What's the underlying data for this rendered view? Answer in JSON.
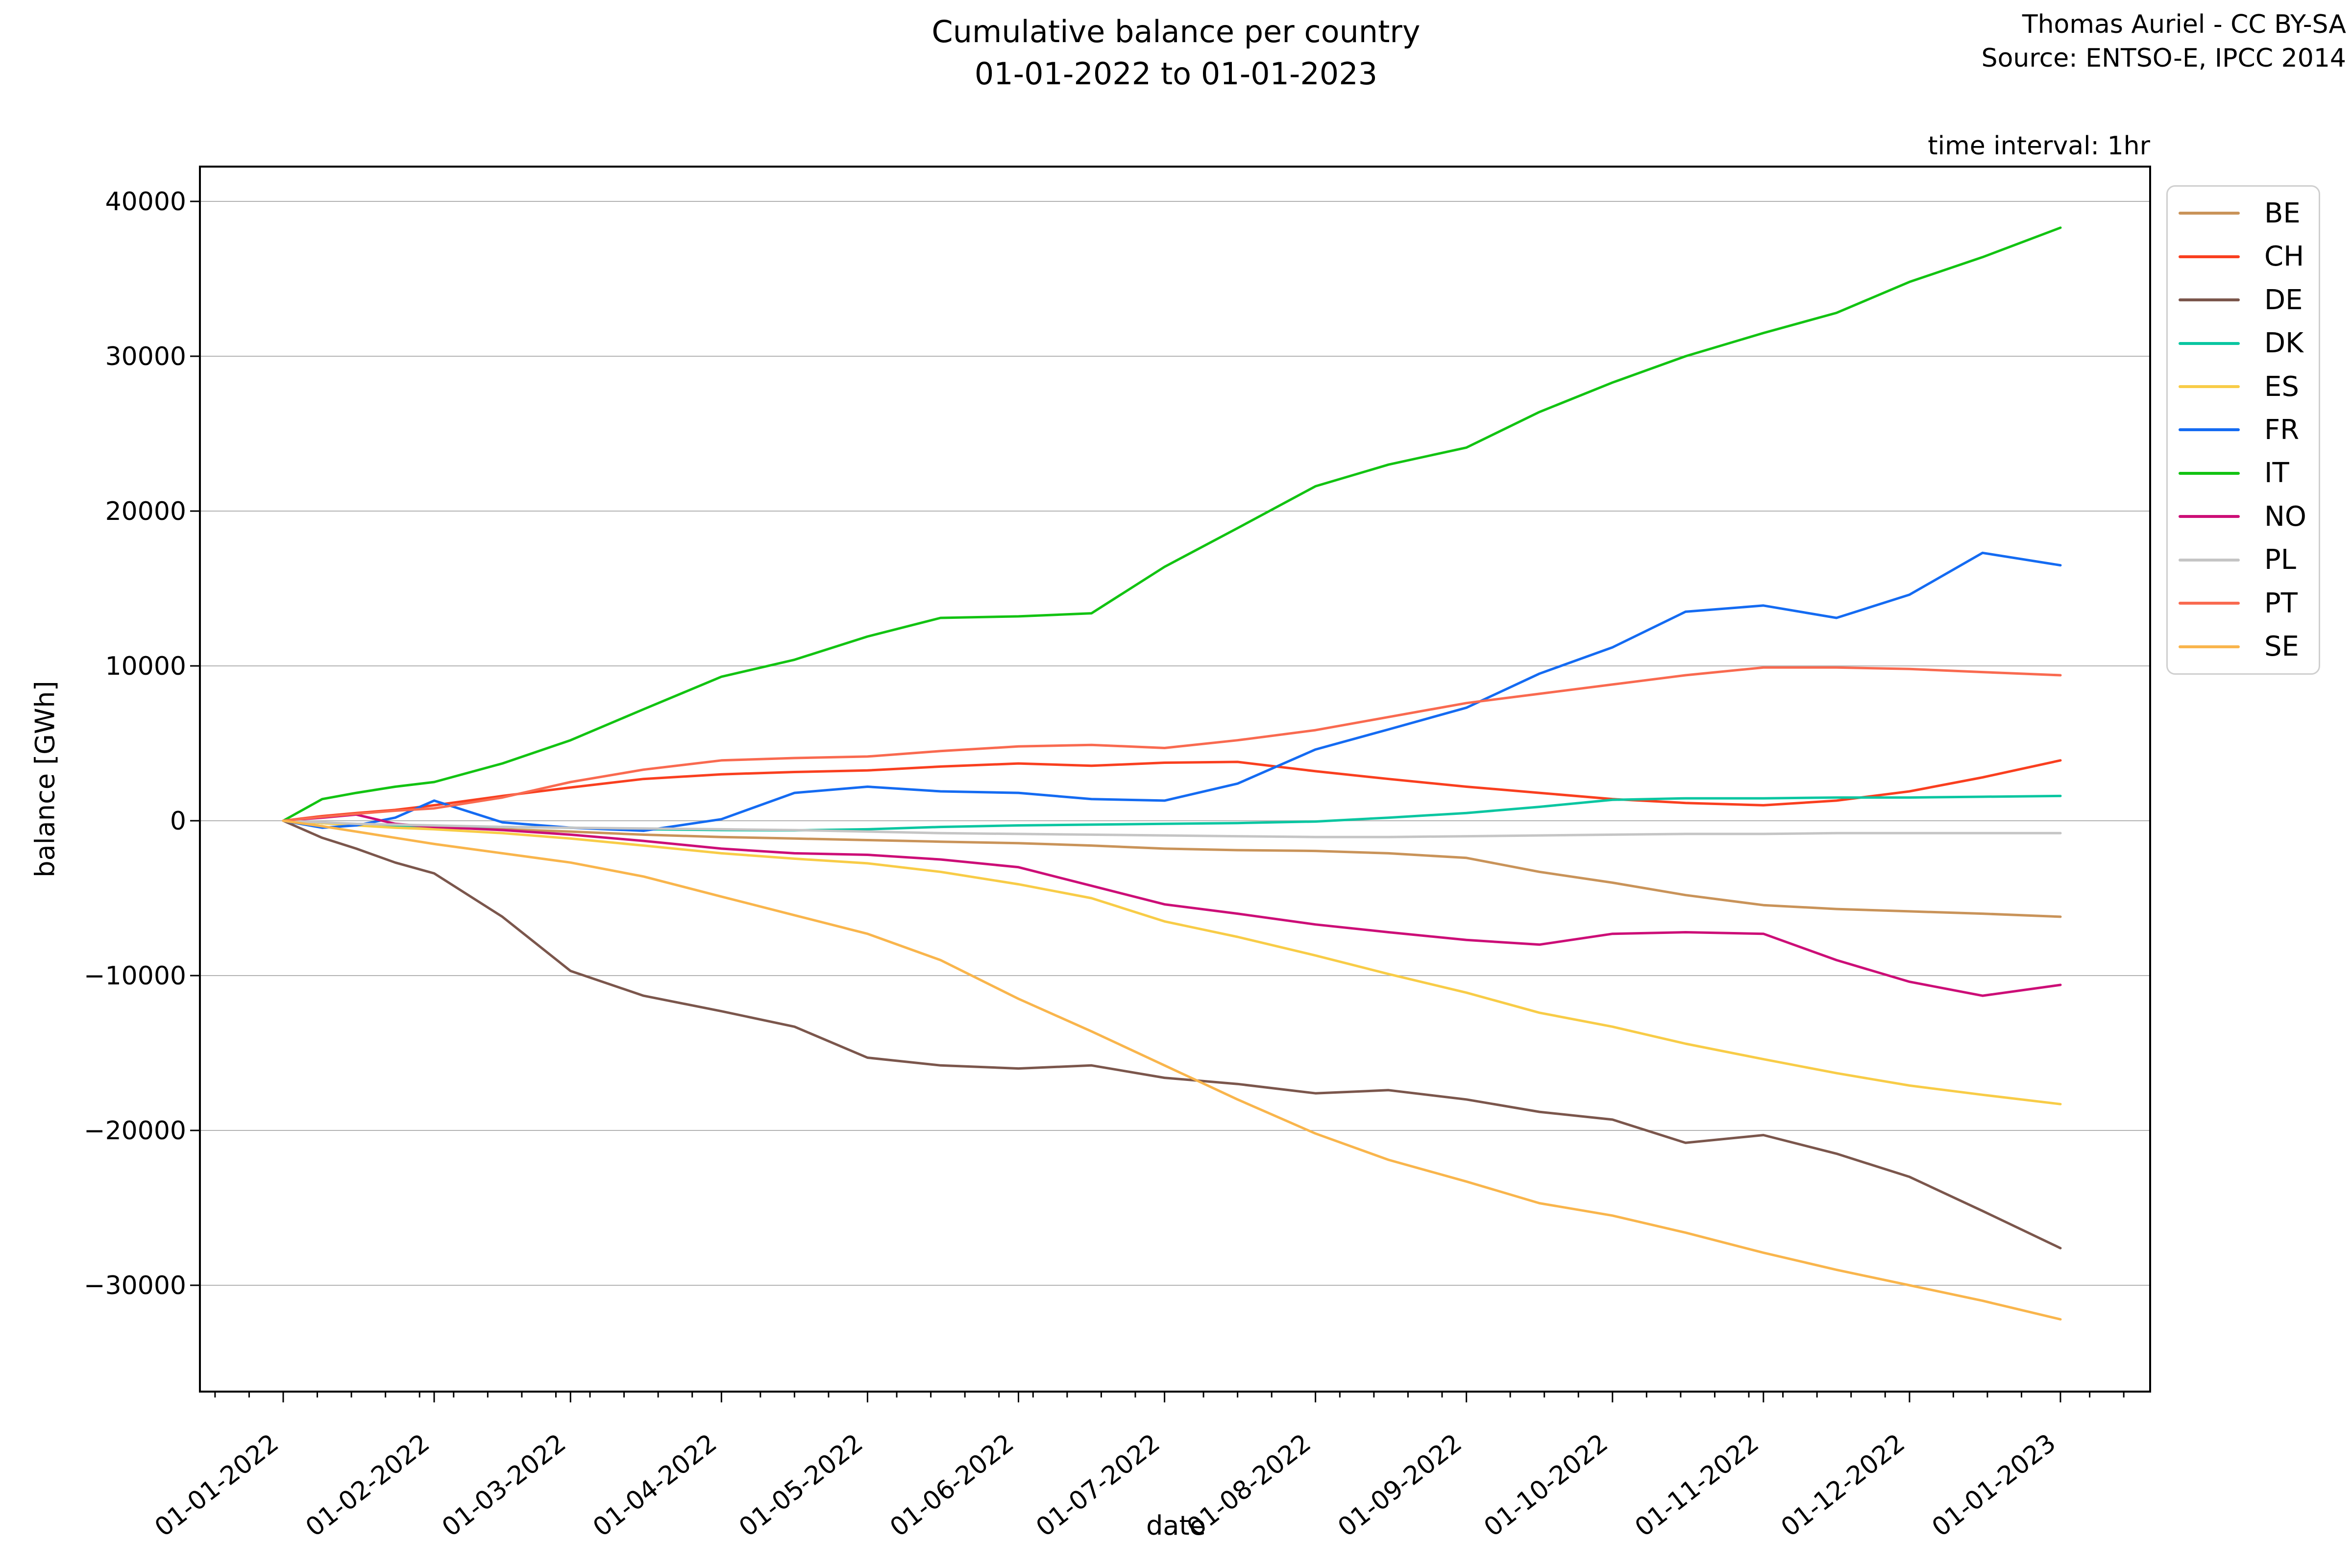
{
  "header": {
    "title_line1": "Cumulative balance per country",
    "title_line2": "01-01-2022 to 01-01-2023",
    "attribution_line1": "Thomas Auriel - CC BY-SA",
    "attribution_line2": "Source: ENTSO-E, IPCC 2014",
    "interval_label": "time interval: 1hr"
  },
  "axes": {
    "xlabel": "date",
    "ylabel": "balance [GWh]",
    "x_tick_labels": [
      "01-01-2022",
      "01-02-2022",
      "01-03-2022",
      "01-04-2022",
      "01-05-2022",
      "01-06-2022",
      "01-07-2022",
      "01-08-2022",
      "01-09-2022",
      "01-10-2022",
      "01-11-2022",
      "01-12-2022",
      "01-01-2023"
    ],
    "y_tick_labels": [
      "40000",
      "30000",
      "20000",
      "10000",
      "0",
      "−10000",
      "−20000",
      "−30000"
    ],
    "grid_color": "#b3b3b3"
  },
  "chart_data": {
    "type": "line",
    "title": "Cumulative balance per country 01-01-2022 to 01-01-2023",
    "xlabel": "date",
    "ylabel": "balance [GWh]",
    "legend_position": "right",
    "grid": "horizontal-only",
    "x_tick_days": [
      0,
      31,
      59,
      90,
      120,
      151,
      181,
      212,
      243,
      273,
      304,
      334,
      365
    ],
    "minor_tick_step_days": 7,
    "y_ticks": [
      40000,
      30000,
      20000,
      10000,
      0,
      -10000,
      -20000,
      -30000
    ],
    "ylim": [
      -36700,
      42300
    ],
    "xlim_days": [
      -17,
      383
    ],
    "sample_days": [
      0,
      8,
      15,
      23,
      31,
      45,
      59,
      74,
      90,
      105,
      120,
      135,
      151,
      166,
      181,
      196,
      212,
      227,
      243,
      258,
      273,
      288,
      304,
      319,
      334,
      349,
      365
    ],
    "series": [
      {
        "name": "BE",
        "color": "#C99359",
        "values": [
          0,
          -150,
          -250,
          -350,
          -450,
          -550,
          -700,
          -900,
          -1050,
          -1150,
          -1250,
          -1350,
          -1450,
          -1600,
          -1800,
          -1900,
          -1950,
          -2100,
          -2400,
          -3300,
          -4000,
          -4800,
          -5450,
          -5700,
          -5850,
          -6000,
          -6200
        ]
      },
      {
        "name": "CH",
        "color": "#F93F1F",
        "values": [
          0,
          300,
          500,
          700,
          1000,
          1600,
          2150,
          2700,
          3000,
          3150,
          3250,
          3500,
          3700,
          3550,
          3750,
          3800,
          3200,
          2700,
          2200,
          1800,
          1400,
          1150,
          1000,
          1300,
          1900,
          2800,
          3900
        ]
      },
      {
        "name": "DE",
        "color": "#7B564C",
        "values": [
          0,
          -1100,
          -1800,
          -2700,
          -3400,
          -6200,
          -9700,
          -11300,
          -12300,
          -13300,
          -15300,
          -15800,
          -16000,
          -15800,
          -16600,
          -17000,
          -17600,
          -17400,
          -18000,
          -18800,
          -19300,
          -20800,
          -20300,
          -21500,
          -23000,
          -25200,
          -27600
        ]
      },
      {
        "name": "DK",
        "color": "#0AC6A1",
        "values": [
          0,
          -150,
          -250,
          -300,
          -350,
          -400,
          -450,
          -550,
          -600,
          -620,
          -550,
          -400,
          -300,
          -250,
          -200,
          -150,
          -50,
          200,
          500,
          900,
          1350,
          1450,
          1450,
          1500,
          1500,
          1550,
          1600
        ]
      },
      {
        "name": "ES",
        "color": "#F8CC47",
        "values": [
          0,
          -150,
          -300,
          -450,
          -550,
          -800,
          -1150,
          -1600,
          -2100,
          -2450,
          -2750,
          -3300,
          -4100,
          -5000,
          -6500,
          -7500,
          -8700,
          -9900,
          -11100,
          -12400,
          -13300,
          -14400,
          -15400,
          -16300,
          -17100,
          -17700,
          -18300
        ]
      },
      {
        "name": "FR",
        "color": "#146BF2",
        "values": [
          0,
          -450,
          -300,
          200,
          1300,
          -100,
          -450,
          -650,
          100,
          1800,
          2200,
          1900,
          1800,
          1400,
          1300,
          2400,
          4600,
          5900,
          7300,
          9500,
          11200,
          13500,
          13900,
          13100,
          14600,
          17300,
          16500
        ]
      },
      {
        "name": "IT",
        "color": "#12C312",
        "values": [
          0,
          1400,
          1800,
          2200,
          2500,
          3700,
          5200,
          7200,
          9300,
          10400,
          11900,
          13100,
          13200,
          13400,
          16400,
          18900,
          21600,
          23000,
          24100,
          26400,
          28300,
          30000,
          31500,
          32800,
          34800,
          36400,
          38300
        ]
      },
      {
        "name": "NO",
        "color": "#CC0E77",
        "values": [
          0,
          200,
          400,
          -200,
          -400,
          -600,
          -900,
          -1300,
          -1800,
          -2100,
          -2200,
          -2500,
          -3000,
          -4200,
          -5400,
          -6000,
          -6700,
          -7200,
          -7700,
          -8000,
          -7300,
          -7200,
          -7300,
          -9000,
          -10400,
          -11300,
          -10600
        ]
      },
      {
        "name": "PL",
        "color": "#C5C5C5",
        "values": [
          0,
          -100,
          -200,
          -250,
          -300,
          -400,
          -450,
          -500,
          -550,
          -600,
          -700,
          -800,
          -850,
          -900,
          -950,
          -1000,
          -1050,
          -1050,
          -1000,
          -950,
          -900,
          -850,
          -850,
          -800,
          -800,
          -800,
          -800
        ]
      },
      {
        "name": "PT",
        "color": "#F96A50",
        "values": [
          0,
          250,
          450,
          650,
          800,
          1500,
          2500,
          3300,
          3900,
          4050,
          4150,
          4500,
          4800,
          4900,
          4700,
          5200,
          5850,
          6700,
          7600,
          8200,
          8800,
          9400,
          9900,
          9900,
          9800,
          9600,
          9400
        ]
      },
      {
        "name": "SE",
        "color": "#F9B54C",
        "values": [
          0,
          -350,
          -700,
          -1100,
          -1500,
          -2100,
          -2700,
          -3600,
          -4900,
          -6100,
          -7300,
          -9000,
          -11500,
          -13600,
          -15800,
          -18000,
          -20200,
          -21900,
          -23300,
          -24700,
          -25500,
          -26600,
          -27900,
          -29000,
          -30000,
          -31000,
          -32200
        ]
      }
    ]
  }
}
